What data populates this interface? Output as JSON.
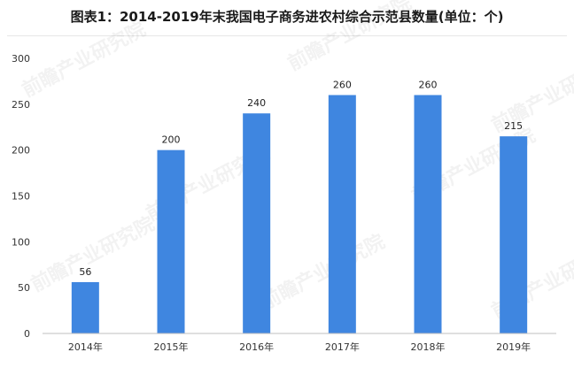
{
  "header": {
    "title": "图表1：2014-2019年末我国电子商务进农村综合示范县数量(单位：个)"
  },
  "watermark": {
    "text": "前瞻产业研究院"
  },
  "chart_data": {
    "type": "bar",
    "categories": [
      "2014年",
      "2015年",
      "2016年",
      "2017年",
      "2018年",
      "2019年"
    ],
    "values": [
      56,
      200,
      240,
      260,
      260,
      215
    ],
    "data_labels": [
      "56",
      "200",
      "240",
      "260",
      "260",
      "215"
    ],
    "ylim": [
      0,
      300
    ],
    "yticks": [
      0,
      50,
      100,
      150,
      200,
      250,
      300
    ],
    "grid": false,
    "bar_color": "#3f86e0",
    "axis_color": "#bfbfbf"
  }
}
